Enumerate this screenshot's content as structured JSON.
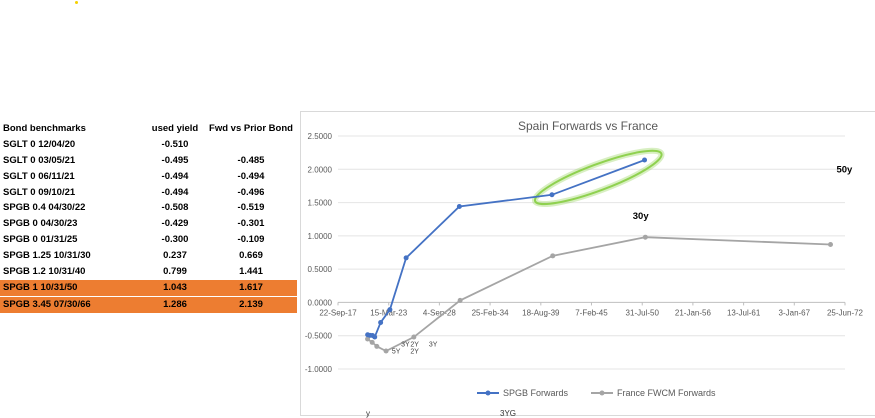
{
  "table": {
    "headers": [
      "Bond benchmarks",
      "used yield",
      "Fwd vs Prior Bond"
    ],
    "rows": [
      {
        "name": "SGLT 0 12/04/20",
        "yield": "-0.510",
        "fwd": "",
        "highlight": false
      },
      {
        "name": "SGLT 0 03/05/21",
        "yield": "-0.495",
        "fwd": "-0.485",
        "highlight": false
      },
      {
        "name": "SGLT 0 06/11/21",
        "yield": "-0.494",
        "fwd": "-0.494",
        "highlight": false
      },
      {
        "name": "SGLT 0 09/10/21",
        "yield": "-0.494",
        "fwd": "-0.496",
        "highlight": false
      },
      {
        "name": "SPGB 0.4 04/30/22",
        "yield": "-0.508",
        "fwd": "-0.519",
        "highlight": false
      },
      {
        "name": "SPGB 0 04/30/23",
        "yield": "-0.429",
        "fwd": "-0.301",
        "highlight": false
      },
      {
        "name": "SPGB 0 01/31/25",
        "yield": "-0.300",
        "fwd": "-0.109",
        "highlight": false
      },
      {
        "name": "SPGB 1.25 10/31/30",
        "yield": "0.237",
        "fwd": "0.669",
        "highlight": false
      },
      {
        "name": "SPGB 1.2 10/31/40",
        "yield": "0.799",
        "fwd": "1.441",
        "highlight": false
      },
      {
        "name": "SPGB 1 10/31/50",
        "yield": "1.043",
        "fwd": "1.617",
        "highlight": true
      },
      {
        "name": "SPGB 3.45 07/30/66",
        "yield": "1.286",
        "fwd": "2.139",
        "highlight": true
      }
    ]
  },
  "chart_data": {
    "type": "line",
    "title": "Spain Forwards vs France",
    "xlabel": "",
    "ylabel": "",
    "x_ticks": [
      "22-Sep-17",
      "15-Mar-23",
      "4-Sep-28",
      "25-Feb-34",
      "18-Aug-39",
      "7-Feb-45",
      "31-Jul-50",
      "21-Jan-56",
      "13-Jul-61",
      "3-Jan-67",
      "25-Jun-72"
    ],
    "y_ticks": [
      "2.5000",
      "2.0000",
      "1.5000",
      "1.0000",
      "0.5000",
      "0.0000",
      "-0.5000",
      "-1.0000"
    ],
    "ylim": [
      -1.0,
      2.5
    ],
    "grid": true,
    "legend_position": "bottom",
    "series": [
      {
        "name": "SPGB Forwards",
        "color": "#4472c4",
        "points": [
          {
            "x": "04-Dec-20",
            "y": -0.485
          },
          {
            "x": "05-Mar-21",
            "y": -0.494
          },
          {
            "x": "11-Jun-21",
            "y": -0.496
          },
          {
            "x": "10-Sep-21",
            "y": -0.519
          },
          {
            "x": "30-Apr-22",
            "y": -0.301
          },
          {
            "x": "30-Apr-23",
            "y": -0.109
          },
          {
            "x": "31-Jan-25",
            "y": 0.669
          },
          {
            "x": "31-Oct-30",
            "y": 1.441
          },
          {
            "x": "31-Oct-40",
            "y": 1.617
          },
          {
            "x": "31-Oct-50",
            "y": 2.139
          }
        ]
      },
      {
        "name": "France FWCM Forwards",
        "color": "#a5a5a5",
        "points": [
          {
            "x": "01-Dec-20",
            "y": -0.55
          },
          {
            "x": "01-Jun-21",
            "y": -0.6
          },
          {
            "x": "01-Dec-21",
            "y": -0.66
          },
          {
            "x": "01-Dec-22",
            "y": -0.73
          },
          {
            "x": "01-Dec-25",
            "y": -0.52
          },
          {
            "x": "01-Dec-30",
            "y": 0.03
          },
          {
            "x": "01-Dec-40",
            "y": 0.7
          },
          {
            "x": "01-Dec-50",
            "y": 0.98
          },
          {
            "x": "01-Dec-70",
            "y": 0.87
          }
        ]
      }
    ],
    "annotations": [
      {
        "text": "30y",
        "x": "01-Jun-50",
        "y": 1.25
      },
      {
        "text": "50y",
        "x": "01-Jun-72",
        "y": 1.95
      },
      {
        "text": "3Y",
        "x": "01-Jan-25",
        "y": -0.66
      },
      {
        "text": "2Y",
        "x": "01-Jan-26",
        "y": -0.66
      },
      {
        "text": "3Y",
        "x": "01-Jan-28",
        "y": -0.66
      },
      {
        "text": "5Y",
        "x": "01-Jan-24",
        "y": -0.77
      },
      {
        "text": "2Y",
        "x": "01-Jan-26",
        "y": -0.77
      }
    ],
    "highlight_color": "#8fd14f"
  },
  "fragments": [
    "y",
    "3YG"
  ]
}
